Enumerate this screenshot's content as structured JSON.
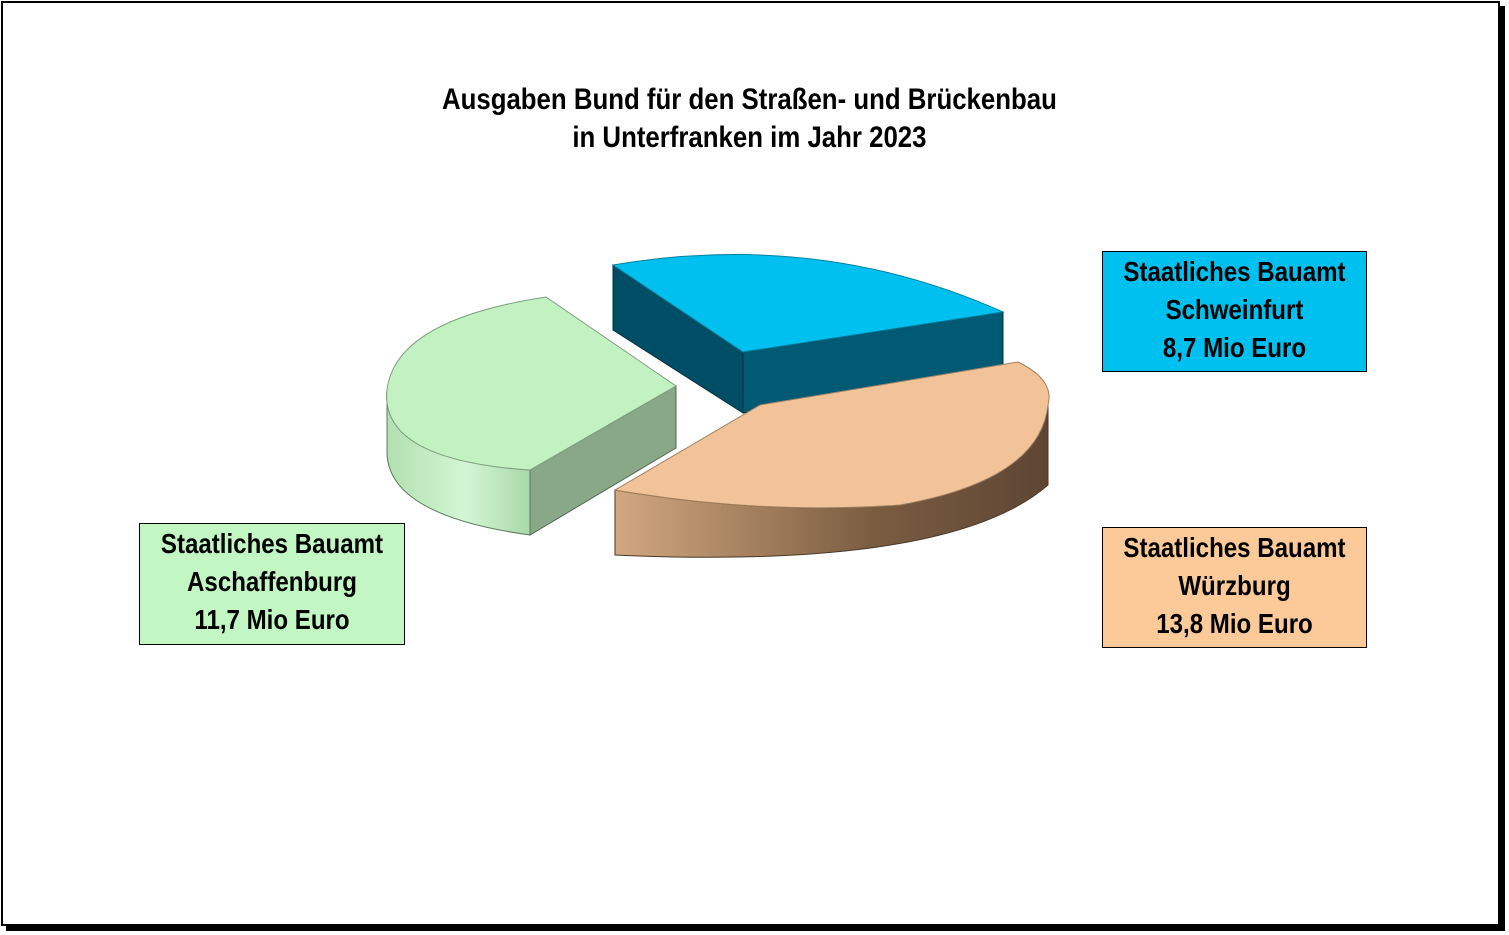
{
  "chart_data": {
    "type": "pie",
    "title": [
      "Ausgaben Bund für den Straßen- und Brückenbau",
      "in Unterfranken im Jahr 2023"
    ],
    "unit": "Mio Euro",
    "slices": [
      {
        "name_line1": "Staatliches Bauamt",
        "name_line2": "Schweinfurt",
        "value": 8.7,
        "value_label": "8,7 Mio Euro",
        "color": "#00c0f0",
        "side_color": "#005068",
        "label_bg": "#00c0f0"
      },
      {
        "name_line1": "Staatliches Bauamt",
        "name_line2": "Würzburg",
        "value": 13.8,
        "value_label": "13,8 Mio Euro",
        "color": "#f2c298",
        "side_color": "#6a5038",
        "label_bg": "#fbca98"
      },
      {
        "name_line1": "Staatliches Bauamt",
        "name_line2": "Aschaffenburg",
        "value": 11.7,
        "value_label": "11,7 Mio Euro",
        "color": "#c2f2c2",
        "side_color": "#88a888",
        "label_bg": "#c2f6c2"
      }
    ],
    "style": "3d-exploded"
  }
}
